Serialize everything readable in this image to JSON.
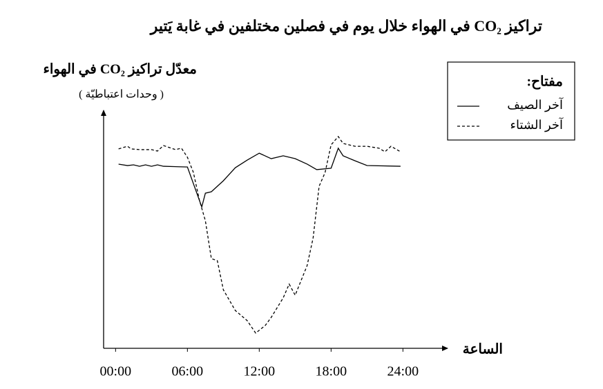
{
  "chart_data": {
    "type": "line",
    "title": "تراكيز CO₂ في الهواء خلال يوم في فصلين مختلفين في غابة يَتير",
    "y_label": "معدّل تراكيز CO₂ في الهواء",
    "y_unit": "( وحدات اعتباطيّة )",
    "x_label": "الساعة",
    "legend_title": "مفتاح:",
    "legend_position": "top-right",
    "xlim": [
      -1,
      27.5
    ],
    "ylim": [
      0,
      100
    ],
    "xticks": [
      {
        "value": 0,
        "label": "00:00"
      },
      {
        "value": 6,
        "label": "06:00"
      },
      {
        "value": 12,
        "label": "12:00"
      },
      {
        "value": 18,
        "label": "18:00"
      },
      {
        "value": 24,
        "label": "24:00"
      }
    ],
    "series": [
      {
        "name": "آخر الصيف",
        "color": "#000000",
        "style": "solid",
        "x": [
          0.25,
          1,
          1.5,
          2,
          2.5,
          3,
          3.5,
          4,
          6,
          7.2,
          7.5,
          8,
          9,
          10,
          11,
          12,
          13,
          14,
          15,
          16,
          16.8,
          18,
          18.6,
          19,
          20,
          21,
          23.8
        ],
        "values": [
          77.4,
          76.8,
          77.1,
          76.5,
          77.1,
          76.5,
          77.1,
          76.5,
          76.2,
          59.4,
          65.2,
          65.8,
          70.4,
          75.9,
          79.1,
          82.0,
          79.7,
          80.9,
          79.7,
          77.4,
          75.1,
          75.7,
          84.1,
          80.9,
          78.8,
          76.8,
          76.5
        ]
      },
      {
        "name": "آخر الشتاء",
        "color": "#000000",
        "style": "dashed",
        "x": [
          0.25,
          1,
          1.3,
          2,
          3,
          3.5,
          4,
          5,
          5.5,
          6,
          6.5,
          7,
          7.5,
          8,
          8.5,
          9,
          10,
          11,
          11.7,
          12.5,
          13,
          14,
          14.5,
          15,
          16,
          16.5,
          17,
          17.5,
          18,
          18.6,
          19,
          20,
          21,
          22,
          22.5,
          23,
          23.8
        ],
        "values": [
          83.8,
          84.9,
          83.8,
          83.5,
          83.5,
          82.9,
          85.2,
          83.5,
          84.1,
          80.3,
          73.9,
          62.3,
          53.6,
          37.7,
          36.8,
          24.6,
          15.9,
          11.6,
          6.4,
          9.6,
          13.0,
          21.2,
          27.0,
          22.3,
          34.8,
          46.4,
          68.1,
          73.9,
          85.5,
          89.0,
          86.1,
          84.9,
          84.9,
          84.1,
          82.6,
          84.9,
          82.6
        ]
      }
    ]
  }
}
